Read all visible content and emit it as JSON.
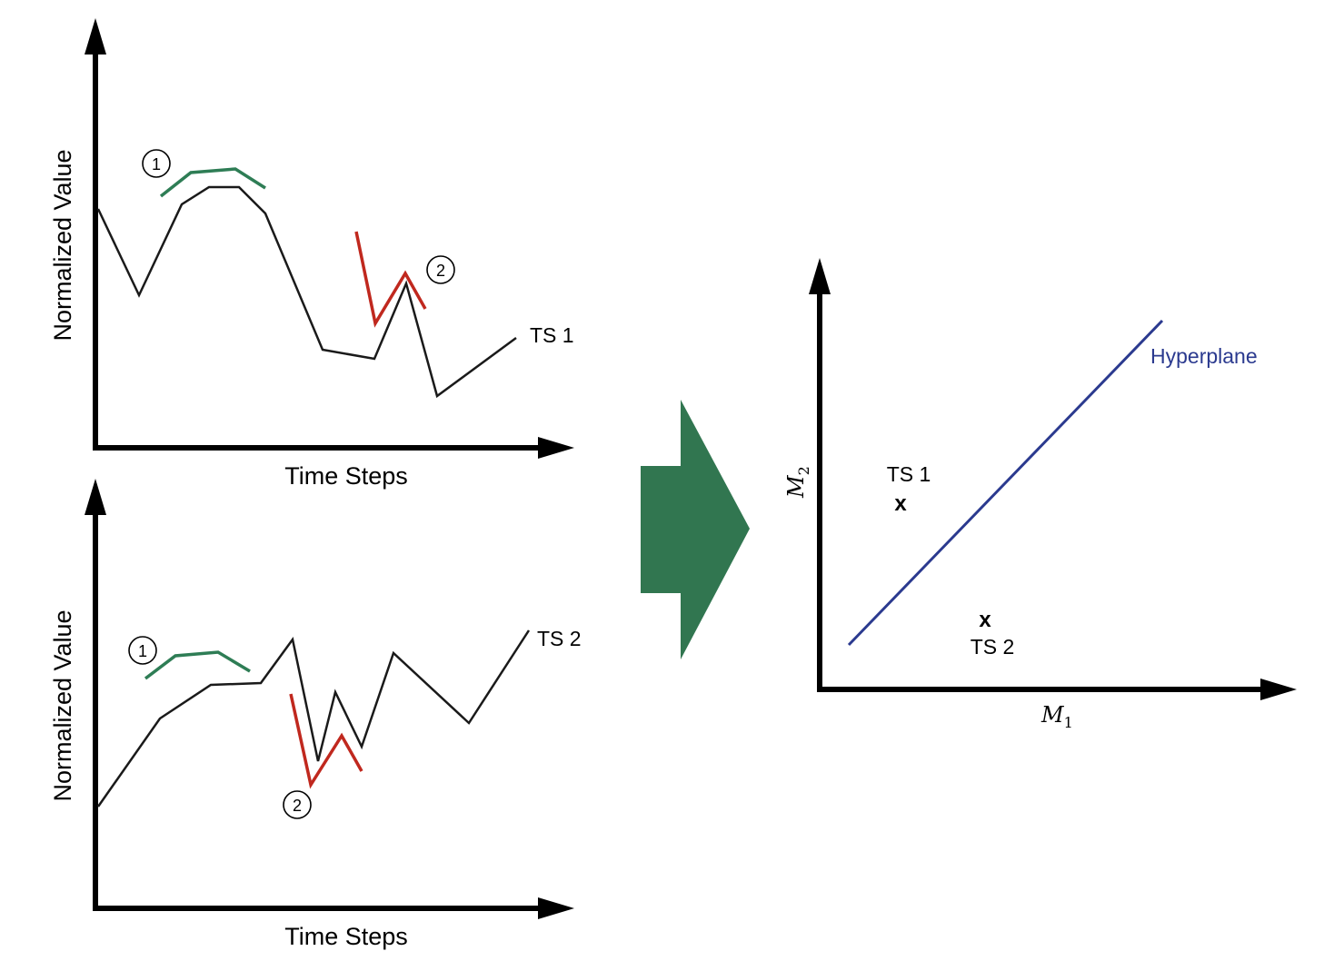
{
  "colors": {
    "series": "#1a1a1a",
    "shapelet1": "#2e7d55",
    "shapelet2": "#c0281e",
    "arrow": "#317650",
    "hyperplane": "#2b3a8f",
    "axis": "#000000"
  },
  "top_plot": {
    "ylabel": "Normalized Value",
    "xlabel": "Time Steps",
    "series_label": "TS 1",
    "marker1": "1",
    "marker2": "2"
  },
  "bottom_plot": {
    "ylabel": "Normalized Value",
    "xlabel": "Time Steps",
    "series_label": "TS 2",
    "marker1": "1",
    "marker2": "2"
  },
  "feature_space": {
    "x_axis_label": "M",
    "x_axis_sub": "1",
    "y_axis_label": "M",
    "y_axis_sub": "2",
    "hyperplane_label": "Hyperplane",
    "point1_label": "TS 1",
    "point1_marker": "x",
    "point2_label": "TS 2",
    "point2_marker": "x"
  }
}
